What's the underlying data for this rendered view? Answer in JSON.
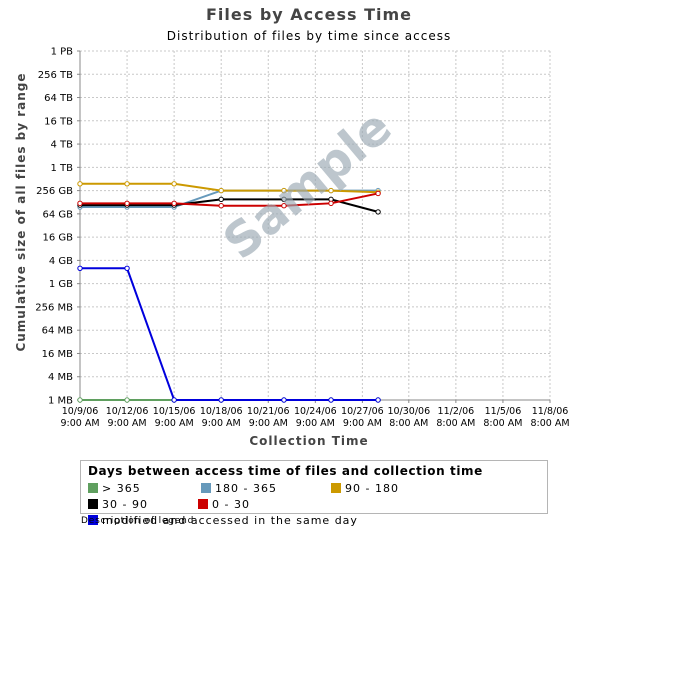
{
  "chart_data": {
    "type": "line",
    "title": "Files by Access Time",
    "subtitle": "Distribution of files by time since access",
    "xlabel": "Collection Time",
    "ylabel": "Cumulative size of all files by range",
    "yscale": "log2",
    "y_unit": "bytes",
    "y_tick_labels": [
      "1 PB",
      "256 TB",
      "64 TB",
      "16 TB",
      "4 TB",
      "1 TB",
      "256 GB",
      "64 GB",
      "16 GB",
      "4 GB",
      "1 GB",
      "256 MB",
      "64 MB",
      "16 MB",
      "4 MB",
      "1 MB"
    ],
    "x_tick_labels": [
      [
        "10/9/06",
        "9:00 AM"
      ],
      [
        "10/12/06",
        "9:00 AM"
      ],
      [
        "10/15/06",
        "9:00 AM"
      ],
      [
        "10/18/06",
        "9:00 AM"
      ],
      [
        "10/21/06",
        "9:00 AM"
      ],
      [
        "10/24/06",
        "9:00 AM"
      ],
      [
        "10/27/06",
        "9:00 AM"
      ],
      [
        "10/30/06",
        "8:00 AM"
      ],
      [
        "11/2/06",
        "8:00 AM"
      ],
      [
        "11/5/06",
        "8:00 AM"
      ],
      [
        "11/8/06",
        "8:00 AM"
      ]
    ],
    "x": [
      "10/9/06",
      "10/12/06",
      "10/15/06",
      "10/18/06",
      "10/22/06",
      "10/25/06",
      "10/28/06"
    ],
    "grid": true,
    "series": [
      {
        "name": "> 365",
        "color": "#5f9f5f",
        "values": [
          "1 MB",
          "1 MB",
          "1 MB",
          "1 MB",
          "1 MB",
          "1 MB",
          "1 MB"
        ]
      },
      {
        "name": "180 - 365",
        "color": "#6699bb",
        "values": [
          "96 GB",
          "96 GB",
          "96 GB",
          "256 GB",
          "256 GB",
          "256 GB",
          "256 GB"
        ]
      },
      {
        "name": "90 - 180",
        "color": "#cc9900",
        "values": [
          "384 GB",
          "384 GB",
          "384 GB",
          "256 GB",
          "256 GB",
          "256 GB",
          "232 GB"
        ]
      },
      {
        "name": "30 - 90",
        "color": "#000000",
        "values": [
          "108 GB",
          "108 GB",
          "108 GB",
          "152 GB",
          "152 GB",
          "152 GB",
          "72 GB"
        ]
      },
      {
        "name": "0 - 30",
        "color": "#cc0000",
        "values": [
          "120 GB",
          "120 GB",
          "120 GB",
          "104 GB",
          "104 GB",
          "120 GB",
          "216 GB"
        ]
      },
      {
        "name": "modified and accessed in the same day",
        "color": "#0000dd",
        "values": [
          "2.5 GB",
          "2.5 GB",
          "1 MB",
          "1 MB",
          "1 MB",
          "1 MB",
          "1 MB"
        ]
      }
    ],
    "legend": {
      "title": "Days between access time of files and collection time",
      "placement": "bottom"
    },
    "watermark": "Sample"
  },
  "legend_description": "Description of legend"
}
